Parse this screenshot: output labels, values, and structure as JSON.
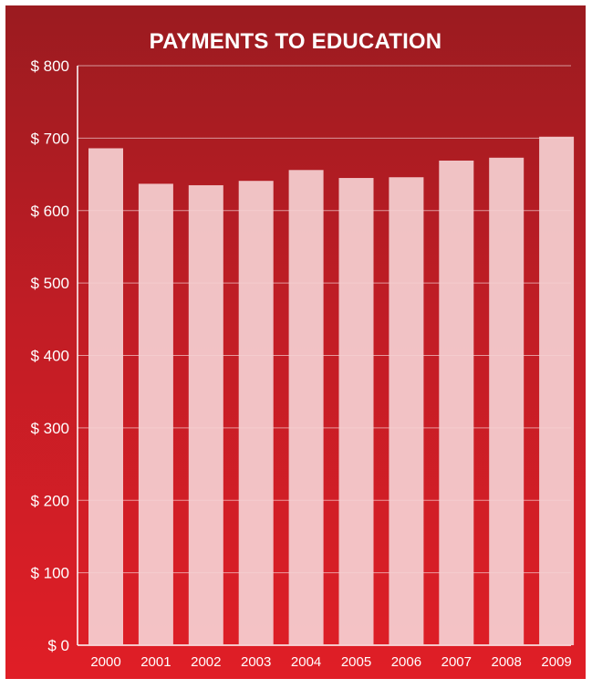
{
  "chart_data": {
    "type": "bar",
    "title": "PAYMENTS TO EDUCATION",
    "xlabel": "",
    "ylabel": "",
    "categories": [
      "2000",
      "2001",
      "2002",
      "2003",
      "2004",
      "2005",
      "2006",
      "2007",
      "2008",
      "2009"
    ],
    "values": [
      686,
      637,
      635,
      641,
      656,
      645,
      646,
      669,
      673,
      702
    ],
    "ylim": [
      0,
      800
    ],
    "yticks": [
      0,
      100,
      200,
      300,
      400,
      500,
      600,
      700,
      800
    ],
    "ytick_labels": [
      "$ 0",
      "$ 100",
      "$ 200",
      "$ 300",
      "$ 400",
      "$ 500",
      "$ 600",
      "$ 700",
      "$ 800"
    ],
    "grid": true,
    "legend": "none",
    "colors": {
      "background_top": "#9b1b20",
      "background_bottom": "#e01e26",
      "bar": "#f5d0d3",
      "text": "#ffffff",
      "grid": "#ffffff"
    }
  }
}
